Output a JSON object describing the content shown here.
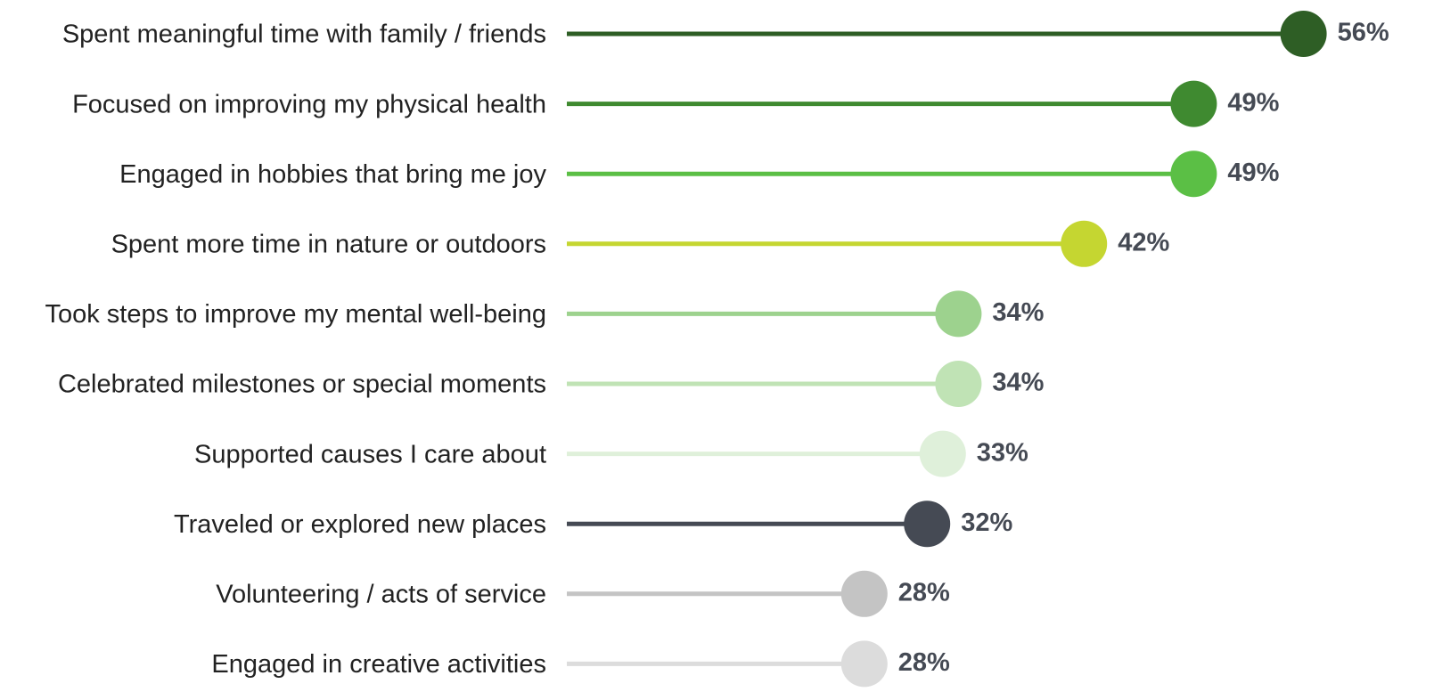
{
  "chart_data": {
    "type": "lollipop",
    "categories": [
      "Spent meaningful time with family / friends",
      "Focused on improving my physical health",
      "Engaged in hobbies that bring me joy",
      "Spent more time in nature or outdoors",
      "Took steps to improve my mental well-being",
      "Celebrated milestones or special moments",
      "Supported causes I care about",
      "Traveled or explored new places",
      "Volunteering / acts of service",
      "Engaged in creative activities"
    ],
    "values": [
      56,
      49,
      49,
      42,
      34,
      34,
      33,
      32,
      28,
      28
    ],
    "value_labels": [
      "56%",
      "49%",
      "49%",
      "42%",
      "34%",
      "34%",
      "33%",
      "32%",
      "28%",
      "28%"
    ],
    "colors": [
      "#2e5e25",
      "#3f8a30",
      "#5bbf45",
      "#c5d631",
      "#9dd28e",
      "#c0e3b5",
      "#dff0da",
      "#454a54",
      "#c4c4c4",
      "#dcdcdc"
    ]
  }
}
